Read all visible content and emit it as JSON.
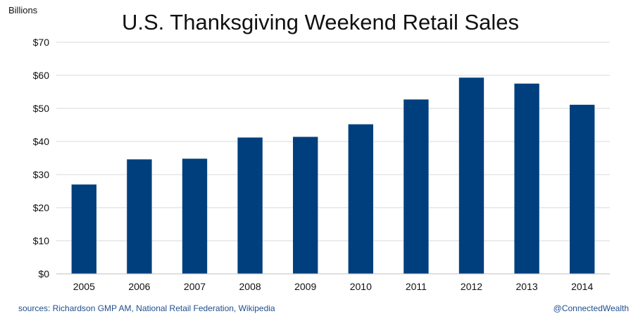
{
  "chart_data": {
    "type": "bar",
    "title": "U.S. Thanksgiving Weekend Retail Sales",
    "unit_label": "Billions",
    "categories": [
      "2005",
      "2006",
      "2007",
      "2008",
      "2009",
      "2010",
      "2011",
      "2012",
      "2013",
      "2014"
    ],
    "values": [
      27.0,
      34.6,
      34.8,
      41.2,
      41.4,
      45.2,
      52.7,
      59.3,
      57.5,
      51.1
    ],
    "ylim": [
      0,
      70
    ],
    "y_ticks": [
      0,
      10,
      20,
      30,
      40,
      50,
      60,
      70
    ],
    "y_tick_labels": [
      "$0",
      "$10",
      "$20",
      "$30",
      "$40",
      "$50",
      "$60",
      "$70"
    ],
    "grid": true,
    "legend": "none",
    "bar_color": "#003f7d"
  },
  "footer": {
    "sources": "sources: Richardson GMP AM, National Retail Federation, Wikipedia",
    "credit": "@ConnectedWealth",
    "text_color": "#1f4e8c"
  }
}
